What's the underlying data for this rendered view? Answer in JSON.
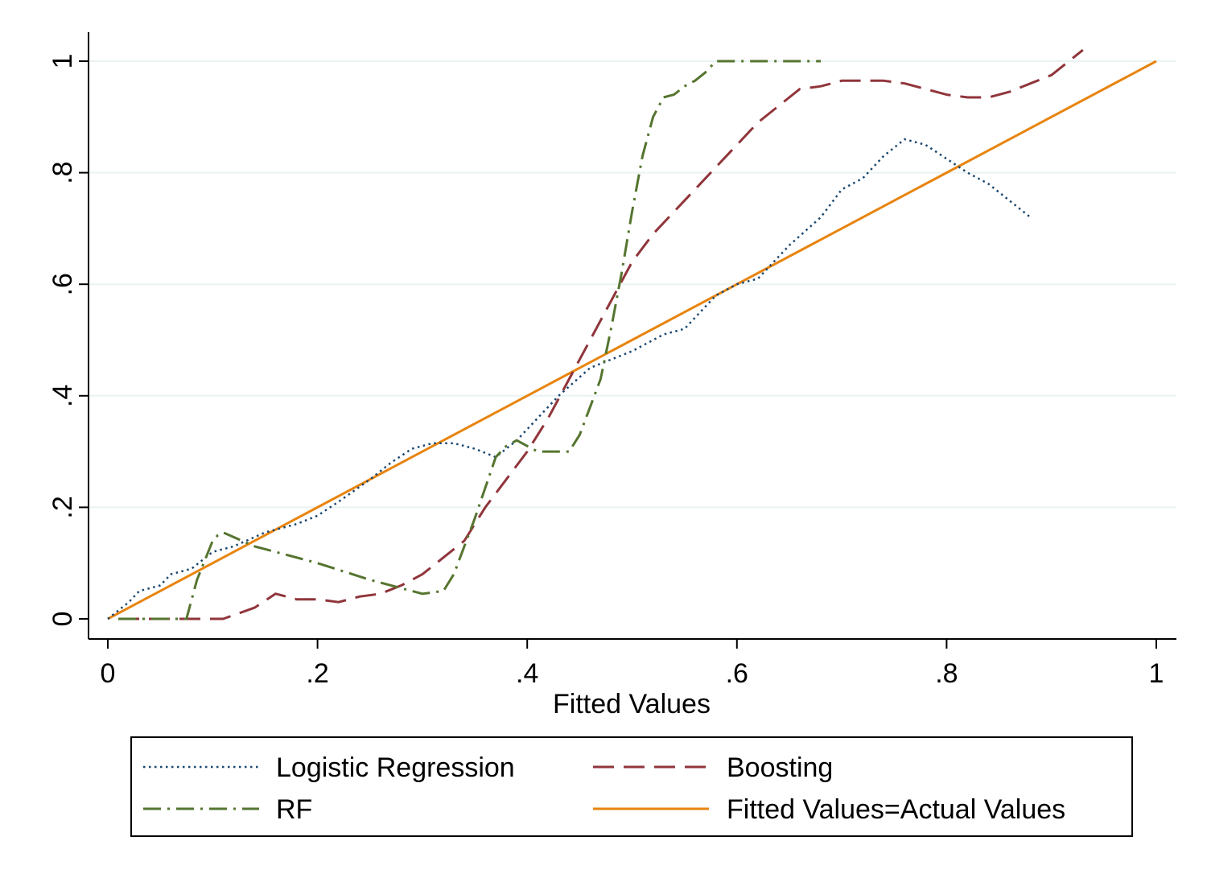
{
  "chart_data": {
    "type": "line",
    "title": "",
    "xlabel": "Fitted Values",
    "ylabel": "",
    "xlim": [
      0,
      1
    ],
    "ylim": [
      0,
      1
    ],
    "x_ticks": [
      0,
      0.2,
      0.4,
      0.6,
      0.8,
      1
    ],
    "x_tick_labels": [
      "0",
      ".2",
      ".4",
      ".6",
      ".8",
      "1"
    ],
    "y_ticks": [
      0,
      0.2,
      0.4,
      0.6,
      0.8,
      1
    ],
    "y_tick_labels": [
      "0",
      ".2",
      ".4",
      ".6",
      ".8",
      "1"
    ],
    "grid": "horizontal",
    "legend_position": "bottom",
    "series": [
      {
        "name": "Logistic Regression",
        "color": "#1a476f",
        "style": "dotted",
        "x": [
          0,
          0.02,
          0.03,
          0.05,
          0.06,
          0.07,
          0.08,
          0.1,
          0.12,
          0.15,
          0.18,
          0.2,
          0.22,
          0.25,
          0.27,
          0.29,
          0.31,
          0.33,
          0.35,
          0.37,
          0.39,
          0.41,
          0.43,
          0.46,
          0.5,
          0.53,
          0.55,
          0.58,
          0.6,
          0.62,
          0.65,
          0.68,
          0.7,
          0.72,
          0.74,
          0.76,
          0.78,
          0.8,
          0.82,
          0.84,
          0.86,
          0.88
        ],
        "y": [
          0,
          0.03,
          0.05,
          0.06,
          0.08,
          0.085,
          0.09,
          0.12,
          0.13,
          0.155,
          0.17,
          0.185,
          0.21,
          0.25,
          0.28,
          0.305,
          0.315,
          0.315,
          0.305,
          0.29,
          0.32,
          0.36,
          0.4,
          0.45,
          0.48,
          0.51,
          0.52,
          0.58,
          0.6,
          0.61,
          0.67,
          0.72,
          0.77,
          0.79,
          0.83,
          0.86,
          0.85,
          0.825,
          0.8,
          0.78,
          0.75,
          0.72
        ]
      },
      {
        "name": "Boosting",
        "color": "#90353b",
        "style": "dashed",
        "x": [
          0.01,
          0.05,
          0.08,
          0.11,
          0.14,
          0.16,
          0.18,
          0.2,
          0.22,
          0.24,
          0.26,
          0.28,
          0.3,
          0.32,
          0.34,
          0.36,
          0.38,
          0.4,
          0.42,
          0.44,
          0.46,
          0.48,
          0.5,
          0.52,
          0.54,
          0.56,
          0.58,
          0.6,
          0.62,
          0.64,
          0.66,
          0.68,
          0.7,
          0.72,
          0.74,
          0.76,
          0.78,
          0.8,
          0.82,
          0.84,
          0.86,
          0.88,
          0.9,
          0.93
        ],
        "y": [
          0,
          0,
          0,
          0,
          0.02,
          0.045,
          0.035,
          0.035,
          0.03,
          0.04,
          0.045,
          0.06,
          0.08,
          0.11,
          0.14,
          0.2,
          0.25,
          0.3,
          0.36,
          0.43,
          0.5,
          0.57,
          0.64,
          0.69,
          0.73,
          0.77,
          0.81,
          0.85,
          0.89,
          0.92,
          0.95,
          0.955,
          0.965,
          0.965,
          0.965,
          0.96,
          0.95,
          0.94,
          0.935,
          0.935,
          0.945,
          0.96,
          0.975,
          1.02
        ]
      },
      {
        "name": "RF",
        "color": "#55752f",
        "style": "dashdot",
        "x": [
          0.01,
          0.04,
          0.075,
          0.085,
          0.1,
          0.105,
          0.11,
          0.14,
          0.2,
          0.25,
          0.28,
          0.3,
          0.32,
          0.33,
          0.35,
          0.37,
          0.38,
          0.39,
          0.4,
          0.41,
          0.43,
          0.44,
          0.45,
          0.46,
          0.47,
          0.48,
          0.49,
          0.5,
          0.51,
          0.52,
          0.53,
          0.54,
          0.55,
          0.56,
          0.57,
          0.58,
          0.6,
          0.64,
          0.68
        ],
        "y": [
          0,
          0,
          0,
          0.07,
          0.14,
          0.15,
          0.155,
          0.13,
          0.1,
          0.07,
          0.055,
          0.045,
          0.05,
          0.08,
          0.18,
          0.29,
          0.31,
          0.32,
          0.31,
          0.3,
          0.3,
          0.3,
          0.33,
          0.38,
          0.43,
          0.52,
          0.62,
          0.73,
          0.83,
          0.9,
          0.935,
          0.94,
          0.955,
          0.965,
          0.98,
          1.0,
          1.0,
          1.0,
          1.0
        ]
      },
      {
        "name": "Fitted Values=Actual Values",
        "color": "#e8840e",
        "style": "solid",
        "x": [
          0,
          1
        ],
        "y": [
          0,
          1
        ]
      }
    ]
  }
}
